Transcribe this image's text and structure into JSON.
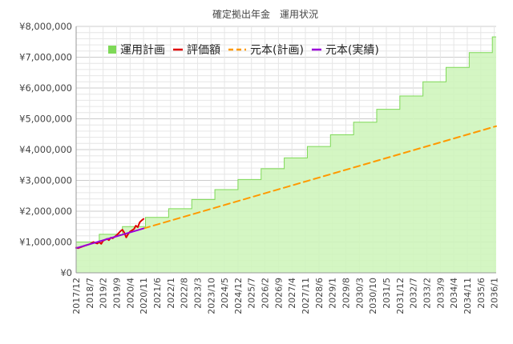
{
  "chart_data": {
    "type": "area",
    "title": "確定拠出年金　運用状況",
    "legend_position": "top",
    "grid": true,
    "ylim": [
      0,
      8000000
    ],
    "y_ticks": [
      {
        "value": 0,
        "label": "¥0"
      },
      {
        "value": 1000000,
        "label": "¥1,000,000"
      },
      {
        "value": 2000000,
        "label": "¥2,000,000"
      },
      {
        "value": 3000000,
        "label": "¥3,000,000"
      },
      {
        "value": 4000000,
        "label": "¥4,000,000"
      },
      {
        "value": 5000000,
        "label": "¥5,000,000"
      },
      {
        "value": 6000000,
        "label": "¥6,000,000"
      },
      {
        "value": 7000000,
        "label": "¥7,000,000"
      },
      {
        "value": 8000000,
        "label": "¥8,000,000"
      }
    ],
    "xlim": [
      2017.917,
      2036.083
    ],
    "x_ticks": [
      {
        "value": 2017.917,
        "label": "2017/12"
      },
      {
        "value": 2018.5,
        "label": "2018/7"
      },
      {
        "value": 2019.083,
        "label": "2019/2"
      },
      {
        "value": 2019.667,
        "label": "2019/9"
      },
      {
        "value": 2020.25,
        "label": "2020/4"
      },
      {
        "value": 2020.833,
        "label": "2020/11"
      },
      {
        "value": 2021.417,
        "label": "2021/6"
      },
      {
        "value": 2022,
        "label": "2022/1"
      },
      {
        "value": 2022.583,
        "label": "2022/8"
      },
      {
        "value": 2023.167,
        "label": "2023/3"
      },
      {
        "value": 2023.75,
        "label": "2023/10"
      },
      {
        "value": 2024.333,
        "label": "2024/5"
      },
      {
        "value": 2024.917,
        "label": "2024/12"
      },
      {
        "value": 2025.5,
        "label": "2025/7"
      },
      {
        "value": 2026.083,
        "label": "2026/2"
      },
      {
        "value": 2026.667,
        "label": "2026/9"
      },
      {
        "value": 2027.25,
        "label": "2027/4"
      },
      {
        "value": 2027.833,
        "label": "2027/11"
      },
      {
        "value": 2028.417,
        "label": "2028/6"
      },
      {
        "value": 2029,
        "label": "2029/1"
      },
      {
        "value": 2029.583,
        "label": "2029/8"
      },
      {
        "value": 2030.167,
        "label": "2030/3"
      },
      {
        "value": 2030.75,
        "label": "2030/10"
      },
      {
        "value": 2031.333,
        "label": "2031/5"
      },
      {
        "value": 2031.917,
        "label": "2031/12"
      },
      {
        "value": 2032.5,
        "label": "2032/7"
      },
      {
        "value": 2033.083,
        "label": "2033/2"
      },
      {
        "value": 2033.667,
        "label": "2033/9"
      },
      {
        "value": 2034.25,
        "label": "2034/4"
      },
      {
        "value": 2034.833,
        "label": "2034/11"
      },
      {
        "value": 2035.417,
        "label": "2035/6"
      },
      {
        "value": 2036,
        "label": "2036/1"
      }
    ],
    "series": [
      {
        "name": "運用計画",
        "kind": "step-area",
        "color": "#7ed957",
        "fill": "#ccf5b8",
        "x": [
          2017.917,
          2018.917,
          2019.917,
          2020.917,
          2021.917,
          2022.917,
          2023.917,
          2024.917,
          2025.917,
          2026.917,
          2027.917,
          2028.917,
          2029.917,
          2030.917,
          2031.917,
          2032.917,
          2033.917,
          2034.917,
          2035.917,
          2036.083
        ],
        "y": [
          1000000,
          1250000,
          1500000,
          1800000,
          2080000,
          2380000,
          2700000,
          3030000,
          3380000,
          3730000,
          4100000,
          4480000,
          4890000,
          5310000,
          5740000,
          6200000,
          6670000,
          7150000,
          7660000,
          7660000
        ]
      },
      {
        "name": "評価額",
        "kind": "line",
        "color": "#e00000",
        "x": [
          2017.917,
          2018.0,
          2018.25,
          2018.5,
          2018.667,
          2018.75,
          2018.833,
          2018.917,
          2019.0,
          2019.083,
          2019.25,
          2019.333,
          2019.417,
          2019.5,
          2019.667,
          2019.833,
          2019.917,
          2020.0,
          2020.083,
          2020.167,
          2020.25,
          2020.417,
          2020.5,
          2020.583,
          2020.667,
          2020.75,
          2020.833
        ],
        "y": [
          820000,
          800000,
          870000,
          930000,
          1000000,
          970000,
          950000,
          1000000,
          940000,
          1040000,
          1100000,
          1060000,
          1140000,
          1120000,
          1220000,
          1350000,
          1400000,
          1300000,
          1150000,
          1260000,
          1340000,
          1420000,
          1530000,
          1480000,
          1640000,
          1700000,
          1750000
        ]
      },
      {
        "name": "元本(計画)",
        "kind": "dashed-line",
        "color": "#ff9900",
        "x": [
          2020.833,
          2036.083
        ],
        "y": [
          1440000,
          4760000
        ]
      },
      {
        "name": "元本(実績)",
        "kind": "line",
        "color": "#9b00d9",
        "x": [
          2017.917,
          2020.833
        ],
        "y": [
          800000,
          1440000
        ]
      }
    ]
  }
}
